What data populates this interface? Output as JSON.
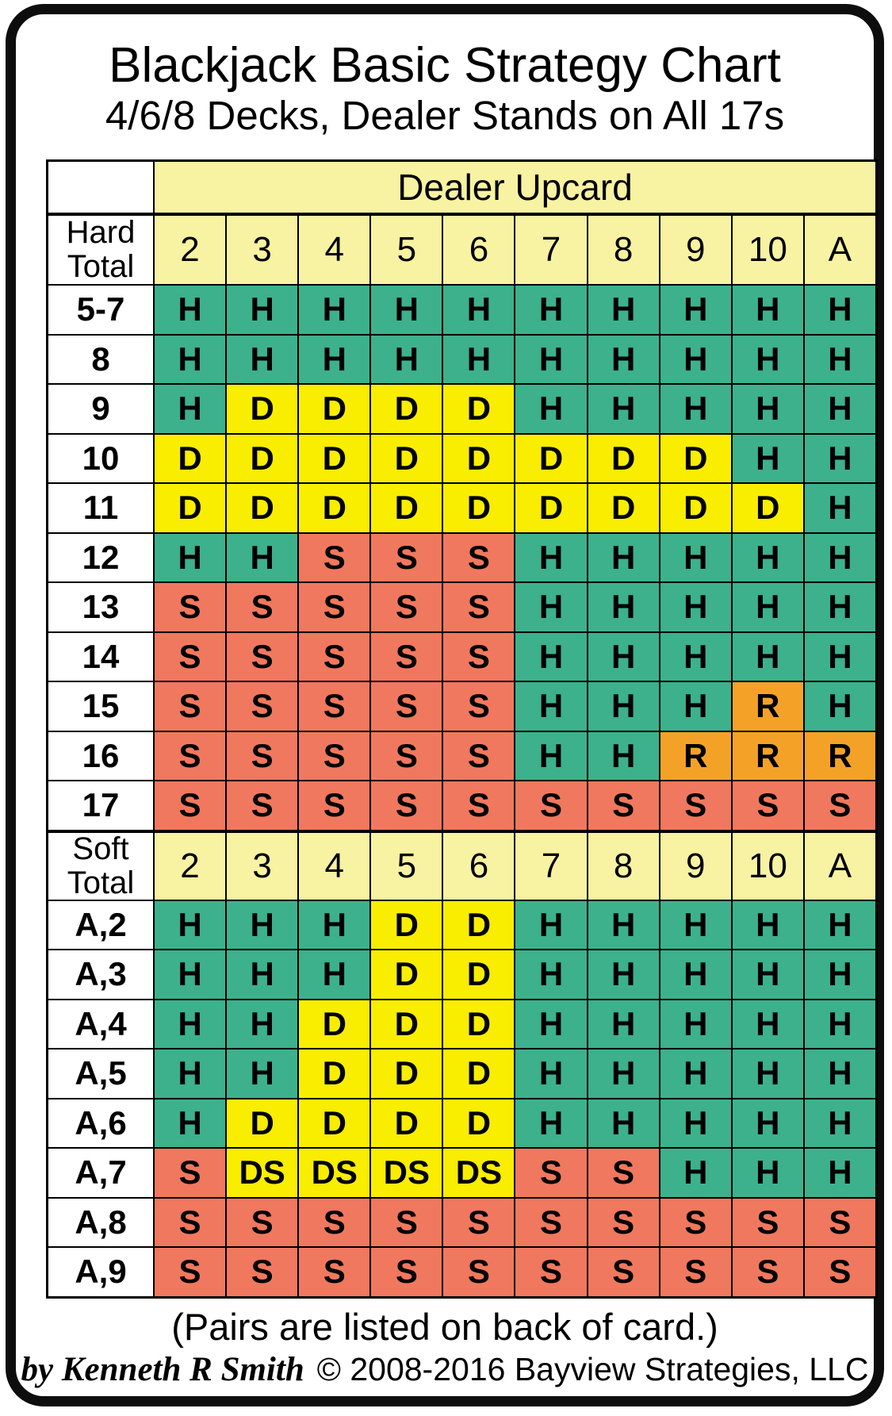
{
  "title": "Blackjack Basic Strategy Chart",
  "subtitle": "4/6/8 Decks, Dealer Stands on All 17s",
  "footer": {
    "pairs_note": "(Pairs are listed on back of card.)",
    "author_credit": "by Kenneth R Smith",
    "copyright": "© 2008-2016 Bayview Strategies, LLC"
  },
  "colors": {
    "card_bg": "#ffffff",
    "border": "#000000",
    "header_bg": "#f8f3a2"
  },
  "chart_data": {
    "type": "table",
    "title": "Blackjack Basic Strategy Chart",
    "subtitle": "4/6/8 Decks, Dealer Stands on All 17s",
    "dealer_upcard_label": "Dealer Upcard",
    "columns": [
      "2",
      "3",
      "4",
      "5",
      "6",
      "7",
      "8",
      "9",
      "10",
      "A"
    ],
    "action_colors": {
      "H": "#3cb18b",
      "D": "#f9ed00",
      "S": "#f0785e",
      "R": "#f4a227",
      "DS": "#f9ed00"
    },
    "hard": {
      "label": "Hard Total",
      "rows": [
        {
          "hand": "5-7",
          "actions": [
            "H",
            "H",
            "H",
            "H",
            "H",
            "H",
            "H",
            "H",
            "H",
            "H"
          ]
        },
        {
          "hand": "8",
          "actions": [
            "H",
            "H",
            "H",
            "H",
            "H",
            "H",
            "H",
            "H",
            "H",
            "H"
          ]
        },
        {
          "hand": "9",
          "actions": [
            "H",
            "D",
            "D",
            "D",
            "D",
            "H",
            "H",
            "H",
            "H",
            "H"
          ]
        },
        {
          "hand": "10",
          "actions": [
            "D",
            "D",
            "D",
            "D",
            "D",
            "D",
            "D",
            "D",
            "H",
            "H"
          ]
        },
        {
          "hand": "11",
          "actions": [
            "D",
            "D",
            "D",
            "D",
            "D",
            "D",
            "D",
            "D",
            "D",
            "H"
          ]
        },
        {
          "hand": "12",
          "actions": [
            "H",
            "H",
            "S",
            "S",
            "S",
            "H",
            "H",
            "H",
            "H",
            "H"
          ]
        },
        {
          "hand": "13",
          "actions": [
            "S",
            "S",
            "S",
            "S",
            "S",
            "H",
            "H",
            "H",
            "H",
            "H"
          ]
        },
        {
          "hand": "14",
          "actions": [
            "S",
            "S",
            "S",
            "S",
            "S",
            "H",
            "H",
            "H",
            "H",
            "H"
          ]
        },
        {
          "hand": "15",
          "actions": [
            "S",
            "S",
            "S",
            "S",
            "S",
            "H",
            "H",
            "H",
            "R",
            "H"
          ]
        },
        {
          "hand": "16",
          "actions": [
            "S",
            "S",
            "S",
            "S",
            "S",
            "H",
            "H",
            "R",
            "R",
            "R"
          ]
        },
        {
          "hand": "17",
          "actions": [
            "S",
            "S",
            "S",
            "S",
            "S",
            "S",
            "S",
            "S",
            "S",
            "S"
          ]
        }
      ]
    },
    "soft": {
      "label": "Soft Total",
      "rows": [
        {
          "hand": "A,2",
          "actions": [
            "H",
            "H",
            "H",
            "D",
            "D",
            "H",
            "H",
            "H",
            "H",
            "H"
          ]
        },
        {
          "hand": "A,3",
          "actions": [
            "H",
            "H",
            "H",
            "D",
            "D",
            "H",
            "H",
            "H",
            "H",
            "H"
          ]
        },
        {
          "hand": "A,4",
          "actions": [
            "H",
            "H",
            "D",
            "D",
            "D",
            "H",
            "H",
            "H",
            "H",
            "H"
          ]
        },
        {
          "hand": "A,5",
          "actions": [
            "H",
            "H",
            "D",
            "D",
            "D",
            "H",
            "H",
            "H",
            "H",
            "H"
          ]
        },
        {
          "hand": "A,6",
          "actions": [
            "H",
            "D",
            "D",
            "D",
            "D",
            "H",
            "H",
            "H",
            "H",
            "H"
          ]
        },
        {
          "hand": "A,7",
          "actions": [
            "S",
            "DS",
            "DS",
            "DS",
            "DS",
            "S",
            "S",
            "H",
            "H",
            "H"
          ]
        },
        {
          "hand": "A,8",
          "actions": [
            "S",
            "S",
            "S",
            "S",
            "S",
            "S",
            "S",
            "S",
            "S",
            "S"
          ]
        },
        {
          "hand": "A,9",
          "actions": [
            "S",
            "S",
            "S",
            "S",
            "S",
            "S",
            "S",
            "S",
            "S",
            "S"
          ]
        }
      ]
    }
  }
}
